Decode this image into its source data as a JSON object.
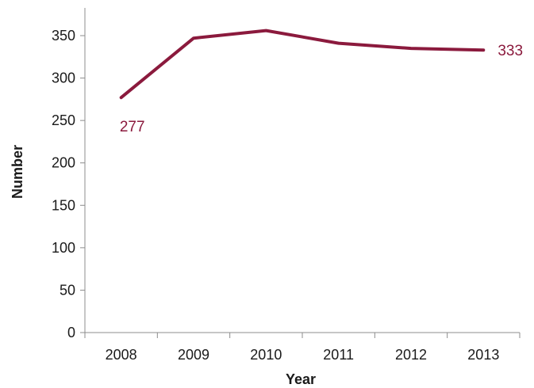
{
  "chart_data": {
    "type": "line",
    "title": "",
    "xlabel": "Year",
    "ylabel": "Number",
    "categories": [
      "2008",
      "2009",
      "2010",
      "2011",
      "2012",
      "2013"
    ],
    "series": [
      {
        "values": [
          277,
          347,
          356,
          341,
          335,
          333
        ]
      }
    ],
    "ylim": [
      0,
      350
    ],
    "yticks": [
      "0",
      "50",
      "100",
      "150",
      "200",
      "250",
      "300",
      "350"
    ],
    "data_labels": [
      {
        "category": "2008",
        "text": "277"
      },
      {
        "category": "2013",
        "text": "333"
      }
    ],
    "grid": false,
    "legend": "none",
    "colors": {
      "line": "#8B1A3D",
      "axis": "#8c8c8c",
      "text": "#1a1a1a"
    }
  }
}
